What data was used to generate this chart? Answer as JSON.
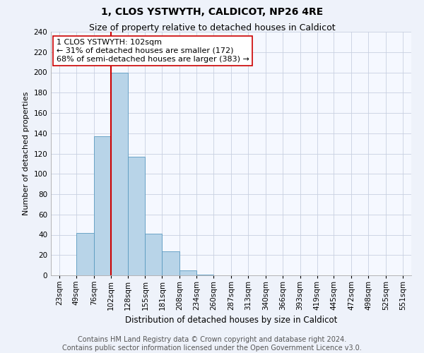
{
  "title": "1, CLOS YSTWYTH, CALDICOT, NP26 4RE",
  "subtitle": "Size of property relative to detached houses in Caldicot",
  "xlabel": "Distribution of detached houses by size in Caldicot",
  "ylabel": "Number of detached properties",
  "bin_labels": [
    "23sqm",
    "49sqm",
    "76sqm",
    "102sqm",
    "128sqm",
    "155sqm",
    "181sqm",
    "208sqm",
    "234sqm",
    "260sqm",
    "287sqm",
    "313sqm",
    "340sqm",
    "366sqm",
    "393sqm",
    "419sqm",
    "445sqm",
    "472sqm",
    "498sqm",
    "525sqm",
    "551sqm"
  ],
  "bin_edges": [
    23,
    49,
    76,
    102,
    128,
    155,
    181,
    208,
    234,
    260,
    287,
    313,
    340,
    366,
    393,
    419,
    445,
    472,
    498,
    525,
    551
  ],
  "bar_heights": [
    0,
    42,
    137,
    200,
    117,
    41,
    24,
    5,
    1,
    0,
    0,
    0,
    0,
    0,
    0,
    0,
    0,
    0,
    0,
    0,
    1
  ],
  "bar_color": "#b8d4e8",
  "bar_edge_color": "#5a9ac0",
  "property_line_x": 102,
  "property_line_color": "#cc0000",
  "annotation_text": "1 CLOS YSTWYTH: 102sqm\n← 31% of detached houses are smaller (172)\n68% of semi-detached houses are larger (383) →",
  "ylim": [
    0,
    240
  ],
  "yticks": [
    0,
    20,
    40,
    60,
    80,
    100,
    120,
    140,
    160,
    180,
    200,
    220,
    240
  ],
  "footer_line1": "Contains HM Land Registry data © Crown copyright and database right 2024.",
  "footer_line2": "Contains public sector information licensed under the Open Government Licence v3.0.",
  "bg_color": "#eef2fa",
  "plot_bg_color": "#f5f8ff",
  "grid_color": "#c8d0e0",
  "title_fontsize": 10,
  "subtitle_fontsize": 9,
  "xlabel_fontsize": 8.5,
  "ylabel_fontsize": 8,
  "annotation_fontsize": 8,
  "tick_fontsize": 7.5,
  "footer_fontsize": 7
}
